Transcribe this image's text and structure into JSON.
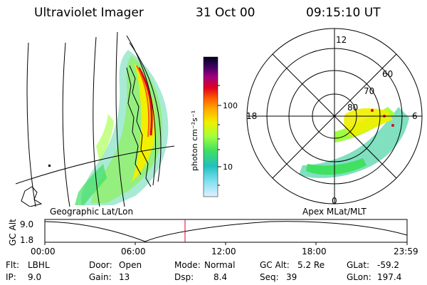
{
  "header": {
    "title": "Ultraviolet Imager",
    "date": "31 Oct 00",
    "time": "09:15:10 UT"
  },
  "colorbar": {
    "label": "photon cm⁻²s⁻¹",
    "ticks": [
      "100",
      "10"
    ],
    "colors": [
      "#000020",
      "#400060",
      "#a00080",
      "#e00020",
      "#ff6000",
      "#ffb000",
      "#f0f000",
      "#a0ff40",
      "#40e060",
      "#20c0c0",
      "#80e0f0",
      "#e0f0ff"
    ]
  },
  "panels": {
    "left_caption": "Geographic Lat/Lon",
    "right_caption": "Apex MLat/MLT"
  },
  "polar": {
    "mlt_labels": [
      "12",
      "18",
      "6",
      "0"
    ],
    "lat_labels": [
      "60",
      "70",
      "80"
    ]
  },
  "altitude_plot": {
    "axis_label": "GC Alt",
    "y_ticks": [
      "9.0",
      "1.8"
    ],
    "x_ticks": [
      "00:00",
      "06:00",
      "12:00",
      "18:00",
      "23:59"
    ],
    "current_time_fraction": 0.387
  },
  "status": {
    "flt_label": "Flt:",
    "flt_value": "LBHL",
    "ip_label": "IP:",
    "ip_value": "9.0",
    "door_label": "Door:",
    "door_value": "Open",
    "gain_label": "Gain:",
    "gain_value": "13",
    "mode_label": "Mode:",
    "mode_value": "Normal",
    "dsp_label": "Dsp:",
    "dsp_value": "8.4",
    "gcalt_label": "GC Alt:",
    "gcalt_value": "5.2 Re",
    "seq_label": "Seq:",
    "seq_value": "39",
    "glat_label": "GLat:",
    "glat_value": "-59.2",
    "glon_label": "GLon:",
    "glon_value": "197.4"
  }
}
